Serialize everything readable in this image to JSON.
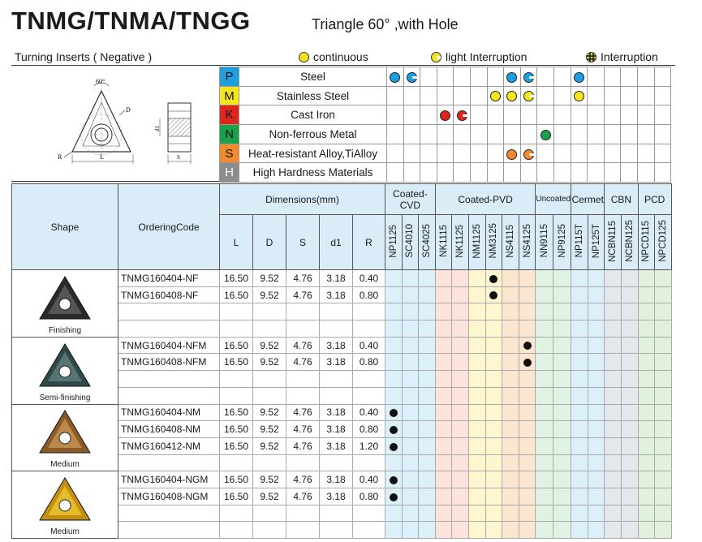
{
  "header": {
    "title": "TNMG/TNMA/TNGG",
    "subtitle": "Triangle 60° ,with Hole",
    "section_label": "Turning Inserts ( Negative )",
    "legend": {
      "continuous": "continuous",
      "light": "light Interruption",
      "interruption": "Interruption"
    }
  },
  "drawing": {
    "angle": "60°",
    "D": "D",
    "R": "R",
    "L": "L",
    "d1": "d1",
    "S": "S"
  },
  "colors": {
    "P": "#1e9fe0",
    "M": "#f5e61c",
    "K": "#e0251b",
    "N": "#1aa24a",
    "S": "#f08a2a",
    "H": "#8c8c8c"
  },
  "materials": [
    {
      "code": "P",
      "name": "Steel"
    },
    {
      "code": "M",
      "name": "Stainless Steel"
    },
    {
      "code": "K",
      "name": "Cast Iron"
    },
    {
      "code": "N",
      "name": "Non-ferrous Metal"
    },
    {
      "code": "S",
      "name": "Heat-resistant Alloy,TiAlloy"
    },
    {
      "code": "H",
      "name": "High Hardness Materials"
    }
  ],
  "table": {
    "shape_header": "Shape",
    "ordering_header": "OrderingCode",
    "dimensions_header": "Dimensions(mm)",
    "dim_cols": [
      "L",
      "D",
      "S",
      "d1",
      "R"
    ],
    "groups": [
      "Coated-CVD",
      "Coated-PVD",
      "Uncoated",
      "Cermet",
      "CBN",
      "PCD"
    ],
    "grades": [
      "NP1125",
      "SC4010",
      "SC4025",
      "NK1115",
      "NK1125",
      "NM1125",
      "NM3125",
      "NS4115",
      "NS4125",
      "NN9115",
      "NP9125",
      "NP115T",
      "NP125T",
      "NCBN115",
      "NCBN125",
      "NPCD115",
      "NPCD125"
    ]
  },
  "sections": [
    {
      "label": "Finishing",
      "rows": [
        {
          "code": "TNMG160404-NF",
          "L": "16.50",
          "D": "9.52",
          "S": "4.76",
          "d1": "3.18",
          "R": "0.40",
          "mark": 6
        },
        {
          "code": "TNMG160408-NF",
          "L": "16.50",
          "D": "9.52",
          "S": "4.76",
          "d1": "3.18",
          "R": "0.80",
          "mark": 6
        }
      ]
    },
    {
      "label": "Semi-finishing",
      "rows": [
        {
          "code": "TNMG160404-NFM",
          "L": "16.50",
          "D": "9.52",
          "S": "4.76",
          "d1": "3.18",
          "R": "0.40",
          "mark": 8
        },
        {
          "code": "TNMG160408-NFM",
          "L": "16.50",
          "D": "9.52",
          "S": "4.76",
          "d1": "3.18",
          "R": "0.80",
          "mark": 8
        }
      ]
    },
    {
      "label": "Medium",
      "rows": [
        {
          "code": "TNMG160404-NM",
          "L": "16.50",
          "D": "9.52",
          "S": "4.76",
          "d1": "3.18",
          "R": "0.40",
          "mark": 0
        },
        {
          "code": "TNMG160408-NM",
          "L": "16.50",
          "D": "9.52",
          "S": "4.76",
          "d1": "3.18",
          "R": "0.80",
          "mark": 0
        },
        {
          "code": "TNMG160412-NM",
          "L": "16.50",
          "D": "9.52",
          "S": "4.76",
          "d1": "3.18",
          "R": "1.20",
          "mark": 0
        }
      ]
    },
    {
      "label": "Medium",
      "rows": [
        {
          "code": "TNMG160404-NGM",
          "L": "16.50",
          "D": "9.52",
          "S": "4.76",
          "d1": "3.18",
          "R": "0.40",
          "mark": 0
        },
        {
          "code": "TNMG160408-NGM",
          "L": "16.50",
          "D": "9.52",
          "S": "4.76",
          "d1": "3.18",
          "R": "0.80",
          "mark": 0
        }
      ]
    }
  ],
  "material_marks": {
    "P": [
      {
        "col": 0,
        "t": "full"
      },
      {
        "col": 1,
        "t": "half"
      },
      {
        "col": 7,
        "t": "full"
      },
      {
        "col": 8,
        "t": "half"
      },
      {
        "col": 11,
        "t": "full"
      }
    ],
    "M": [
      {
        "col": 6,
        "t": "full"
      },
      {
        "col": 7,
        "t": "full"
      },
      {
        "col": 8,
        "t": "half"
      },
      {
        "col": 11,
        "t": "full"
      }
    ],
    "K": [
      {
        "col": 3,
        "t": "full"
      },
      {
        "col": 4,
        "t": "half"
      }
    ],
    "N": [
      {
        "col": 9,
        "t": "full"
      }
    ],
    "S": [
      {
        "col": 7,
        "t": "full"
      },
      {
        "col": 8,
        "t": "half"
      }
    ],
    "H": []
  }
}
